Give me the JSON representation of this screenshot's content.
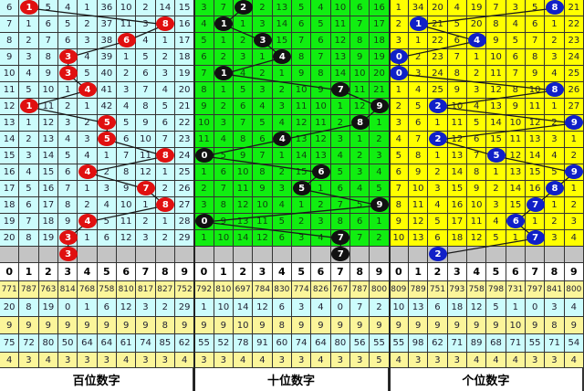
{
  "chart_data": {
    "type": "table",
    "digits": [
      "0",
      "1",
      "2",
      "3",
      "4",
      "5",
      "6",
      "7",
      "8",
      "9"
    ],
    "ball_colors": [
      "#e01010",
      "#111111",
      "#1020c8"
    ],
    "panels": [
      {
        "label": "百位数字",
        "rows": [
          [
            6,
            1,
            5,
            4,
            1,
            36,
            10,
            2,
            14,
            15
          ],
          [
            7,
            1,
            6,
            5,
            2,
            37,
            11,
            3,
            8,
            16
          ],
          [
            8,
            2,
            7,
            6,
            3,
            38,
            6,
            4,
            1,
            17
          ],
          [
            9,
            3,
            8,
            3,
            4,
            39,
            1,
            5,
            2,
            18
          ],
          [
            10,
            4,
            9,
            3,
            5,
            40,
            2,
            6,
            3,
            19
          ],
          [
            11,
            5,
            10,
            1,
            4,
            41,
            3,
            7,
            4,
            20
          ],
          [
            12,
            1,
            11,
            2,
            1,
            42,
            4,
            8,
            5,
            21
          ],
          [
            13,
            1,
            12,
            3,
            2,
            5,
            5,
            9,
            6,
            22
          ],
          [
            14,
            2,
            13,
            4,
            3,
            5,
            6,
            10,
            7,
            23
          ],
          [
            15,
            3,
            14,
            5,
            4,
            1,
            7,
            11,
            8,
            24
          ],
          [
            16,
            4,
            15,
            6,
            4,
            2,
            8,
            12,
            1,
            25
          ],
          [
            17,
            5,
            16,
            7,
            1,
            3,
            9,
            7,
            2,
            26
          ],
          [
            18,
            6,
            17,
            8,
            2,
            4,
            10,
            1,
            8,
            27
          ],
          [
            19,
            7,
            18,
            9,
            4,
            5,
            11,
            2,
            1,
            28
          ],
          [
            20,
            8,
            19,
            3,
            1,
            6,
            12,
            3,
            2,
            29
          ]
        ],
        "hits": [
          1,
          8,
          6,
          3,
          3,
          4,
          1,
          5,
          5,
          8,
          4,
          7,
          8,
          4,
          3
        ],
        "next": 3,
        "stats": [
          [
            771,
            787,
            763,
            814,
            768,
            758,
            810,
            817,
            827,
            752
          ],
          [
            20,
            8,
            19,
            0,
            1,
            6,
            12,
            3,
            2,
            29
          ],
          [
            9,
            9,
            9,
            9,
            9,
            9,
            9,
            9,
            8,
            9
          ],
          [
            75,
            72,
            80,
            50,
            64,
            64,
            61,
            74,
            85,
            62
          ],
          [
            4,
            3,
            4,
            3,
            3,
            3,
            4,
            3,
            3,
            4
          ]
        ]
      },
      {
        "label": "十位数字",
        "rows": [
          [
            3,
            7,
            2,
            2,
            13,
            5,
            4,
            10,
            6,
            16
          ],
          [
            4,
            1,
            1,
            3,
            14,
            6,
            5,
            11,
            7,
            17
          ],
          [
            5,
            1,
            2,
            3,
            15,
            7,
            6,
            12,
            8,
            18
          ],
          [
            6,
            2,
            3,
            1,
            4,
            8,
            7,
            13,
            9,
            19
          ],
          [
            7,
            1,
            4,
            2,
            1,
            9,
            8,
            14,
            10,
            20
          ],
          [
            8,
            1,
            5,
            3,
            2,
            10,
            9,
            7,
            11,
            21
          ],
          [
            9,
            2,
            6,
            4,
            3,
            11,
            10,
            1,
            12,
            9
          ],
          [
            10,
            3,
            7,
            5,
            4,
            12,
            11,
            2,
            8,
            1
          ],
          [
            11,
            4,
            8,
            6,
            4,
            13,
            12,
            3,
            1,
            2
          ],
          [
            0,
            5,
            9,
            7,
            1,
            14,
            13,
            4,
            2,
            3
          ],
          [
            1,
            6,
            10,
            8,
            2,
            15,
            6,
            5,
            3,
            4
          ],
          [
            2,
            7,
            11,
            9,
            3,
            5,
            1,
            6,
            4,
            5
          ],
          [
            3,
            8,
            12,
            10,
            4,
            1,
            2,
            7,
            5,
            9
          ],
          [
            0,
            9,
            13,
            11,
            5,
            2,
            3,
            8,
            6,
            1
          ],
          [
            1,
            10,
            14,
            12,
            6,
            3,
            4,
            7,
            7,
            2
          ]
        ],
        "hits": [
          2,
          1,
          3,
          4,
          1,
          7,
          9,
          8,
          4,
          0,
          6,
          5,
          9,
          0,
          7
        ],
        "next": 7,
        "stats": [
          [
            792,
            810,
            697,
            784,
            830,
            774,
            826,
            767,
            787,
            800
          ],
          [
            1,
            10,
            14,
            12,
            6,
            3,
            4,
            0,
            7,
            2
          ],
          [
            9,
            9,
            10,
            9,
            8,
            9,
            9,
            9,
            9,
            9
          ],
          [
            55,
            52,
            78,
            91,
            60,
            74,
            64,
            80,
            56,
            55
          ],
          [
            3,
            3,
            4,
            4,
            3,
            3,
            4,
            3,
            3,
            5
          ]
        ]
      },
      {
        "label": "个位数字",
        "rows": [
          [
            1,
            34,
            20,
            4,
            19,
            7,
            3,
            5,
            8,
            21
          ],
          [
            2,
            1,
            21,
            5,
            20,
            8,
            4,
            6,
            1,
            22
          ],
          [
            3,
            1,
            22,
            6,
            4,
            9,
            5,
            7,
            2,
            23
          ],
          [
            0,
            2,
            23,
            7,
            1,
            10,
            6,
            8,
            3,
            24
          ],
          [
            0,
            3,
            24,
            8,
            2,
            11,
            7,
            9,
            4,
            25
          ],
          [
            1,
            4,
            25,
            9,
            3,
            12,
            8,
            10,
            8,
            26
          ],
          [
            2,
            5,
            2,
            10,
            4,
            13,
            9,
            11,
            1,
            27
          ],
          [
            3,
            6,
            1,
            11,
            5,
            14,
            10,
            12,
            2,
            9
          ],
          [
            4,
            7,
            2,
            12,
            6,
            15,
            11,
            13,
            3,
            1
          ],
          [
            5,
            8,
            1,
            13,
            7,
            5,
            12,
            14,
            4,
            2
          ],
          [
            6,
            9,
            2,
            14,
            8,
            1,
            13,
            15,
            5,
            9
          ],
          [
            7,
            10,
            3,
            15,
            9,
            2,
            14,
            16,
            8,
            1
          ],
          [
            8,
            11,
            4,
            16,
            10,
            3,
            15,
            7,
            1,
            2
          ],
          [
            9,
            12,
            5,
            17,
            11,
            4,
            6,
            1,
            2,
            3
          ],
          [
            10,
            13,
            6,
            18,
            12,
            5,
            1,
            7,
            3,
            4
          ]
        ],
        "hits": [
          8,
          1,
          4,
          0,
          0,
          8,
          2,
          9,
          2,
          5,
          9,
          8,
          7,
          6,
          7
        ],
        "next": 2,
        "stats": [
          [
            809,
            789,
            751,
            793,
            758,
            798,
            731,
            797,
            841,
            800
          ],
          [
            10,
            13,
            6,
            18,
            12,
            5,
            1,
            0,
            3,
            4
          ],
          [
            9,
            9,
            9,
            9,
            9,
            9,
            10,
            9,
            8,
            9
          ],
          [
            55,
            98,
            62,
            71,
            89,
            68,
            71,
            55,
            71,
            54
          ],
          [
            4,
            3,
            3,
            3,
            4,
            4,
            4,
            3,
            3,
            4
          ]
        ]
      }
    ]
  }
}
